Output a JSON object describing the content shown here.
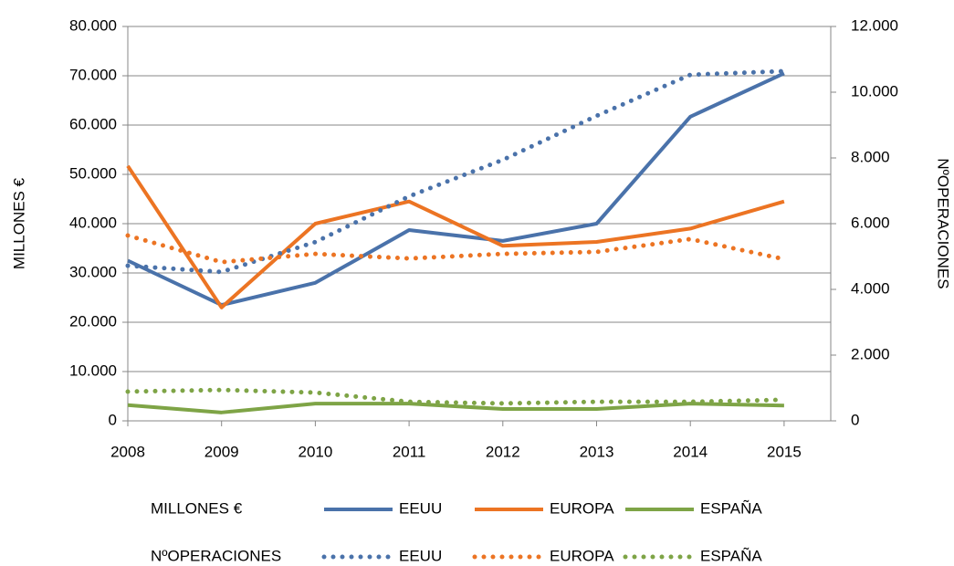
{
  "chart_data": {
    "type": "line",
    "categories": [
      "2008",
      "2009",
      "2010",
      "2011",
      "2012",
      "2013",
      "2014",
      "2015"
    ],
    "ylabel": "MILLONES €",
    "y2label": "NºOPERACIONES",
    "ylim": [
      0,
      80000
    ],
    "yticks": [
      0,
      {
        "value": 10000,
        "label": "10.000"
      },
      {
        "value": 20000,
        "label": "20.000"
      },
      {
        "value": 30000,
        "label": "30.000"
      },
      {
        "value": 40000,
        "label": "40.000"
      },
      {
        "value": 50000,
        "label": "50.000"
      },
      {
        "value": 60000,
        "label": "60.000"
      },
      {
        "value": 70000,
        "label": "70.000"
      },
      {
        "value": 80000,
        "label": "80.000"
      }
    ],
    "y2lim": [
      0,
      12000
    ],
    "y2ticks": [
      0,
      {
        "value": 2000,
        "label": "2.000"
      },
      {
        "value": 4000,
        "label": "4.000"
      },
      {
        "value": 6000,
        "label": "6.000"
      },
      {
        "value": 8000,
        "label": "8.000"
      },
      {
        "value": 10000,
        "label": "10.000"
      },
      {
        "value": 12000,
        "label": "12.000"
      }
    ],
    "grid": true,
    "legend": "bottom",
    "series": [
      {
        "name": "EEUU",
        "color": "#4a72aa",
        "style": "solid",
        "values": [
          32500,
          23500,
          28000,
          38700,
          36500,
          40000,
          61700,
          70500
        ]
      },
      {
        "name": "EUROPA",
        "color": "#ec7423",
        "style": "solid",
        "values": [
          51700,
          23000,
          40000,
          44500,
          35500,
          36300,
          39000,
          44500
        ]
      },
      {
        "name": "ESPAÑA",
        "color": "#7ea446",
        "style": "solid",
        "values": [
          3200,
          1700,
          3500,
          3500,
          2400,
          2400,
          3500,
          3100
        ]
      },
      {
        "name": "EEUU",
        "color": "#4a72aa",
        "style": "dotted",
        "axis": "y2",
        "values": [
          4720,
          4530,
          5440,
          6830,
          7940,
          9280,
          10530,
          10640
        ]
      },
      {
        "name": "EUROPA",
        "color": "#ec7423",
        "style": "dotted",
        "axis": "y2",
        "values": [
          5640,
          4830,
          5080,
          4940,
          5080,
          5140,
          5530,
          4920
        ]
      },
      {
        "name": "ESPAÑA",
        "color": "#7ea446",
        "style": "dotted",
        "axis": "y2",
        "values": [
          890,
          940,
          860,
          580,
          530,
          580,
          580,
          640
        ]
      }
    ]
  }
}
